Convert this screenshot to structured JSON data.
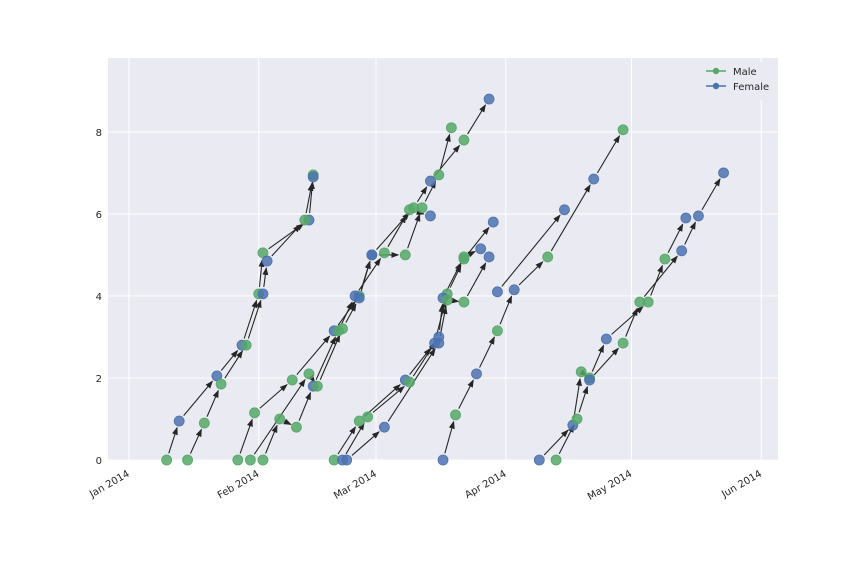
{
  "chart_data": {
    "type": "line",
    "title": "",
    "xlabel": "",
    "ylabel": "",
    "x_axis": {
      "ticks": [
        {
          "label": "Jan 2014",
          "date": "2014-01-01"
        },
        {
          "label": "Feb 2014",
          "date": "2014-02-01"
        },
        {
          "label": "Mar 2014",
          "date": "2014-03-01"
        },
        {
          "label": "Apr 2014",
          "date": "2014-04-01"
        },
        {
          "label": "May 2014",
          "date": "2014-05-01"
        },
        {
          "label": "Jun 2014",
          "date": "2014-06-01"
        }
      ],
      "xlim": [
        "2013-12-27",
        "2014-06-05"
      ]
    },
    "y_axis": {
      "ticks": [
        0,
        2,
        4,
        6,
        8
      ],
      "ylim": [
        0,
        9.8
      ]
    },
    "grid": true,
    "legend_placement": "top-right",
    "colors": {
      "Male": "#55A868",
      "Female": "#4C72B0",
      "arrow": "#262626",
      "plot_background": "#EAEAF2",
      "grid": "#ffffff"
    },
    "series": [
      {
        "name": "Male",
        "color": "#55A868"
      },
      {
        "name": "Female",
        "color": "#4C72B0"
      }
    ],
    "paths": [
      {
        "points": [
          {
            "date": "2014-01-10",
            "y": 0.0,
            "series": "Male"
          },
          {
            "date": "2014-01-13",
            "y": 0.95,
            "series": "Female"
          },
          {
            "date": "2014-01-22",
            "y": 2.05,
            "series": "Female"
          },
          {
            "date": "2014-01-28",
            "y": 2.8,
            "series": "Female"
          },
          {
            "date": "2014-02-01",
            "y": 4.05,
            "series": "Male"
          },
          {
            "date": "2014-02-02",
            "y": 5.05,
            "series": "Male"
          },
          {
            "date": "2014-02-13",
            "y": 5.85,
            "series": "Female"
          },
          {
            "date": "2014-02-14",
            "y": 6.95,
            "series": "Male"
          }
        ]
      },
      {
        "points": [
          {
            "date": "2014-01-15",
            "y": 0.0,
            "series": "Male"
          },
          {
            "date": "2014-01-19",
            "y": 0.9,
            "series": "Male"
          },
          {
            "date": "2014-01-23",
            "y": 1.85,
            "series": "Male"
          },
          {
            "date": "2014-01-29",
            "y": 2.8,
            "series": "Male"
          },
          {
            "date": "2014-02-02",
            "y": 4.05,
            "series": "Female"
          },
          {
            "date": "2014-02-03",
            "y": 4.85,
            "series": "Female"
          },
          {
            "date": "2014-02-12",
            "y": 5.85,
            "series": "Male"
          },
          {
            "date": "2014-02-14",
            "y": 6.9,
            "series": "Female"
          }
        ]
      },
      {
        "points": [
          {
            "date": "2014-01-27",
            "y": 0.0,
            "series": "Male"
          },
          {
            "date": "2014-01-31",
            "y": 1.15,
            "series": "Male"
          },
          {
            "date": "2014-02-09",
            "y": 1.95,
            "series": "Male"
          },
          {
            "date": "2014-02-19",
            "y": 3.15,
            "series": "Female"
          },
          {
            "date": "2014-02-25",
            "y": 4.0,
            "series": "Male"
          },
          {
            "date": "2014-02-28",
            "y": 5.0,
            "series": "Female"
          },
          {
            "date": "2014-03-10",
            "y": 6.15,
            "series": "Male"
          },
          {
            "date": "2014-03-14",
            "y": 6.8,
            "series": "Female"
          },
          {
            "date": "2014-03-22",
            "y": 7.8,
            "series": "Male"
          },
          {
            "date": "2014-03-28",
            "y": 8.8,
            "series": "Female"
          }
        ]
      },
      {
        "points": [
          {
            "date": "2014-02-02",
            "y": 0.0,
            "series": "Male"
          },
          {
            "date": "2014-02-06",
            "y": 1.0,
            "series": "Male"
          },
          {
            "date": "2014-02-10",
            "y": 0.8,
            "series": "Male"
          },
          {
            "date": "2014-02-14",
            "y": 1.8,
            "series": "Female"
          },
          {
            "date": "2014-02-20",
            "y": 3.15,
            "series": "Male"
          },
          {
            "date": "2014-02-24",
            "y": 4.0,
            "series": "Female"
          },
          {
            "date": "2014-03-03",
            "y": 5.05,
            "series": "Male"
          },
          {
            "date": "2014-03-09",
            "y": 6.1,
            "series": "Male"
          },
          {
            "date": "2014-03-14",
            "y": 5.95,
            "series": "Female"
          }
        ]
      },
      {
        "points": [
          {
            "date": "2014-01-30",
            "y": 0.0,
            "series": "Male"
          },
          {
            "date": "2014-02-13",
            "y": 2.1,
            "series": "Male"
          },
          {
            "date": "2014-02-15",
            "y": 1.8,
            "series": "Male"
          },
          {
            "date": "2014-02-21",
            "y": 3.2,
            "series": "Male"
          },
          {
            "date": "2014-02-25",
            "y": 3.95,
            "series": "Female"
          },
          {
            "date": "2014-02-28",
            "y": 5.0,
            "series": "Female"
          },
          {
            "date": "2014-03-08",
            "y": 5.0,
            "series": "Male"
          },
          {
            "date": "2014-03-12",
            "y": 6.15,
            "series": "Male"
          },
          {
            "date": "2014-03-16",
            "y": 6.95,
            "series": "Male"
          },
          {
            "date": "2014-03-19",
            "y": 8.1,
            "series": "Male"
          }
        ]
      },
      {
        "points": [
          {
            "date": "2014-02-19",
            "y": 0.0,
            "series": "Male"
          },
          {
            "date": "2014-02-25",
            "y": 0.95,
            "series": "Male"
          },
          {
            "date": "2014-03-08",
            "y": 1.95,
            "series": "Female"
          },
          {
            "date": "2014-03-15",
            "y": 2.85,
            "series": "Female"
          },
          {
            "date": "2014-03-18",
            "y": 4.05,
            "series": "Male"
          },
          {
            "date": "2014-03-22",
            "y": 4.9,
            "series": "Male"
          },
          {
            "date": "2014-03-29",
            "y": 5.8,
            "series": "Female"
          }
        ]
      },
      {
        "points": [
          {
            "date": "2014-02-21",
            "y": 0.0,
            "series": "Female"
          },
          {
            "date": "2014-02-27",
            "y": 1.05,
            "series": "Male"
          },
          {
            "date": "2014-03-09",
            "y": 1.9,
            "series": "Male"
          },
          {
            "date": "2014-03-16",
            "y": 3.0,
            "series": "Female"
          },
          {
            "date": "2014-03-17",
            "y": 3.95,
            "series": "Female"
          },
          {
            "date": "2014-03-22",
            "y": 4.95,
            "series": "Male"
          },
          {
            "date": "2014-03-26",
            "y": 5.15,
            "series": "Female"
          }
        ]
      },
      {
        "points": [
          {
            "date": "2014-02-22",
            "y": 0.0,
            "series": "Female"
          },
          {
            "date": "2014-03-03",
            "y": 0.8,
            "series": "Female"
          },
          {
            "date": "2014-03-16",
            "y": 2.85,
            "series": "Female"
          },
          {
            "date": "2014-03-18",
            "y": 3.9,
            "series": "Male"
          },
          {
            "date": "2014-03-22",
            "y": 3.85,
            "series": "Male"
          },
          {
            "date": "2014-03-28",
            "y": 4.95,
            "series": "Female"
          }
        ]
      },
      {
        "points": [
          {
            "date": "2014-03-17",
            "y": 0.0,
            "series": "Female"
          },
          {
            "date": "2014-03-20",
            "y": 1.1,
            "series": "Male"
          },
          {
            "date": "2014-03-25",
            "y": 2.1,
            "series": "Female"
          },
          {
            "date": "2014-03-30",
            "y": 3.15,
            "series": "Male"
          },
          {
            "date": "2014-04-03",
            "y": 4.15,
            "series": "Female"
          },
          {
            "date": "2014-04-11",
            "y": 4.95,
            "series": "Male"
          },
          {
            "date": "2014-04-22",
            "y": 6.85,
            "series": "Female"
          },
          {
            "date": "2014-04-29",
            "y": 8.05,
            "series": "Male"
          }
        ]
      },
      {
        "points": [
          {
            "date": "2014-04-09",
            "y": 0.0,
            "series": "Female"
          },
          {
            "date": "2014-04-17",
            "y": 0.85,
            "series": "Female"
          },
          {
            "date": "2014-04-19",
            "y": 2.15,
            "series": "Male"
          },
          {
            "date": "2014-04-21",
            "y": 2.0,
            "series": "Male"
          },
          {
            "date": "2014-04-25",
            "y": 2.95,
            "series": "Female"
          },
          {
            "date": "2014-05-05",
            "y": 3.85,
            "series": "Male"
          },
          {
            "date": "2014-05-09",
            "y": 4.9,
            "series": "Male"
          },
          {
            "date": "2014-05-14",
            "y": 5.9,
            "series": "Female"
          }
        ]
      },
      {
        "points": [
          {
            "date": "2014-04-13",
            "y": 0.0,
            "series": "Male"
          },
          {
            "date": "2014-04-18",
            "y": 1.0,
            "series": "Male"
          },
          {
            "date": "2014-04-21",
            "y": 1.95,
            "series": "Female"
          },
          {
            "date": "2014-04-29",
            "y": 2.85,
            "series": "Male"
          },
          {
            "date": "2014-05-03",
            "y": 3.85,
            "series": "Male"
          },
          {
            "date": "2014-05-13",
            "y": 5.1,
            "series": "Female"
          },
          {
            "date": "2014-05-17",
            "y": 5.95,
            "series": "Female"
          },
          {
            "date": "2014-05-23",
            "y": 7.0,
            "series": "Female"
          }
        ]
      },
      {
        "points": [
          {
            "date": "2014-03-30",
            "y": 4.1,
            "series": "Female"
          },
          {
            "date": "2014-04-15",
            "y": 6.1,
            "series": "Female"
          }
        ]
      }
    ]
  }
}
